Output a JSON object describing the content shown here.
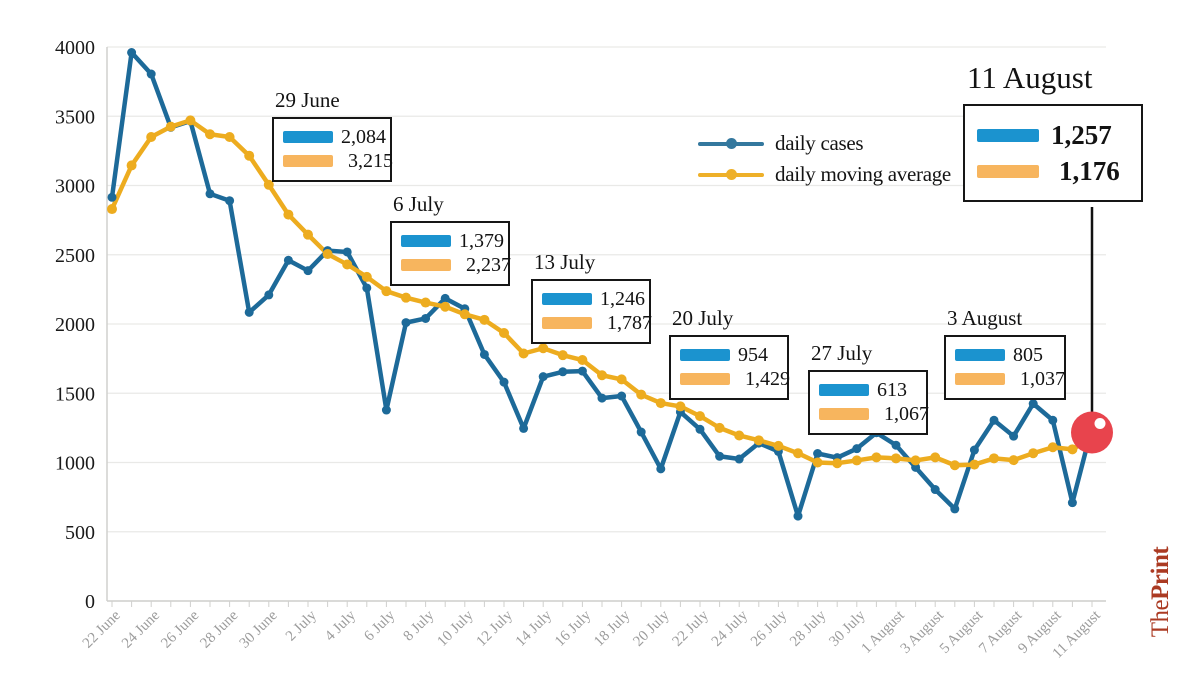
{
  "colors": {
    "daily_cases_line": "#1d6a99",
    "moving_average_line": "#edac1f",
    "swatch_blue": "#1b93cf",
    "swatch_orange": "#f7b55e",
    "highlight_red": "#e8444d",
    "grid": "#e9e9e7",
    "axis": "#d0d0ce",
    "text": "#191919",
    "x_label": "#9c9c9c",
    "logo_red": "#ab3a22"
  },
  "legend": {
    "items": [
      {
        "label": "daily cases"
      },
      {
        "label": "daily moving average"
      }
    ]
  },
  "callouts": [
    {
      "date": "29 June",
      "daily": "2,084",
      "avg": "3,215"
    },
    {
      "date": "6 July",
      "daily": "1,379",
      "avg": "2,237"
    },
    {
      "date": "13 July",
      "daily": "1,246",
      "avg": "1,787"
    },
    {
      "date": "20 July",
      "daily": "954",
      "avg": "1,429"
    },
    {
      "date": "27 July",
      "daily": "613",
      "avg": "1,067"
    },
    {
      "date": "3 August",
      "daily": "805",
      "avg": "1,037"
    },
    {
      "date": "11 August",
      "daily": "1,257",
      "avg": "1,176"
    }
  ],
  "logo": {
    "the": "The",
    "print": "Print"
  },
  "chart_data": {
    "type": "line",
    "title": "",
    "xlabel": "",
    "ylabel": "",
    "ylim": [
      0,
      4000
    ],
    "grid": true,
    "legend_position": "top-right",
    "y_ticks": [
      0,
      500,
      1000,
      1500,
      2000,
      2500,
      3000,
      3500,
      4000
    ],
    "x": [
      "22 June",
      "23 June",
      "24 June",
      "25 June",
      "26 June",
      "27 June",
      "28 June",
      "29 June",
      "30 June",
      "1 July",
      "2 July",
      "3 July",
      "4 July",
      "5 July",
      "6 July",
      "7 July",
      "8 July",
      "9 July",
      "10 July",
      "11 July",
      "12 July",
      "13 July",
      "14 July",
      "15 July",
      "16 July",
      "17 July",
      "18 July",
      "19 July",
      "20 July",
      "21 July",
      "22 July",
      "23 July",
      "24 July",
      "25 July",
      "26 July",
      "27 July",
      "28 July",
      "29 July",
      "30 July",
      "31 July",
      "1 August",
      "2 August",
      "3 August",
      "4 August",
      "5 August",
      "6 August",
      "7 August",
      "8 August",
      "9 August",
      "10 August",
      "11 August"
    ],
    "x_tick_labels": [
      "22 June",
      "24 June",
      "26 June",
      "28 June",
      "30 June",
      "2 July",
      "4 July",
      "6 July",
      "8 July",
      "10 July",
      "12 July",
      "14 July",
      "16 July",
      "18 July",
      "20 July",
      "22 July",
      "24 July",
      "26 July",
      "28 July",
      "30 July",
      "1 August",
      "3 August",
      "5 August",
      "7 August",
      "9 August",
      "11 August"
    ],
    "series": [
      {
        "name": "daily cases",
        "color": "#1d6a99",
        "values": [
          2915,
          3960,
          3805,
          3420,
          3465,
          2940,
          2890,
          2084,
          2210,
          2460,
          2385,
          2530,
          2520,
          2260,
          1379,
          2010,
          2040,
          2185,
          2110,
          1780,
          1580,
          1246,
          1620,
          1655,
          1660,
          1465,
          1480,
          1220,
          954,
          1365,
          1240,
          1045,
          1025,
          1140,
          1080,
          613,
          1065,
          1035,
          1100,
          1215,
          1125,
          965,
          805,
          665,
          1090,
          1305,
          1190,
          1425,
          1305,
          710,
          1257
        ]
      },
      {
        "name": "daily moving average",
        "color": "#edac1f",
        "values": [
          2830,
          3145,
          3350,
          3425,
          3470,
          3370,
          3350,
          3215,
          3005,
          2790,
          2645,
          2505,
          2430,
          2340,
          2237,
          2190,
          2155,
          2125,
          2070,
          2030,
          1935,
          1787,
          1825,
          1775,
          1740,
          1630,
          1600,
          1490,
          1429,
          1405,
          1335,
          1250,
          1195,
          1160,
          1120,
          1067,
          1000,
          995,
          1015,
          1037,
          1030,
          1015,
          1037,
          980,
          985,
          1030,
          1017,
          1067,
          1110,
          1095,
          1176
        ]
      }
    ],
    "highlight": {
      "x": "11 August",
      "daily": 1257,
      "avg": 1176,
      "color": "#e8444d"
    }
  }
}
